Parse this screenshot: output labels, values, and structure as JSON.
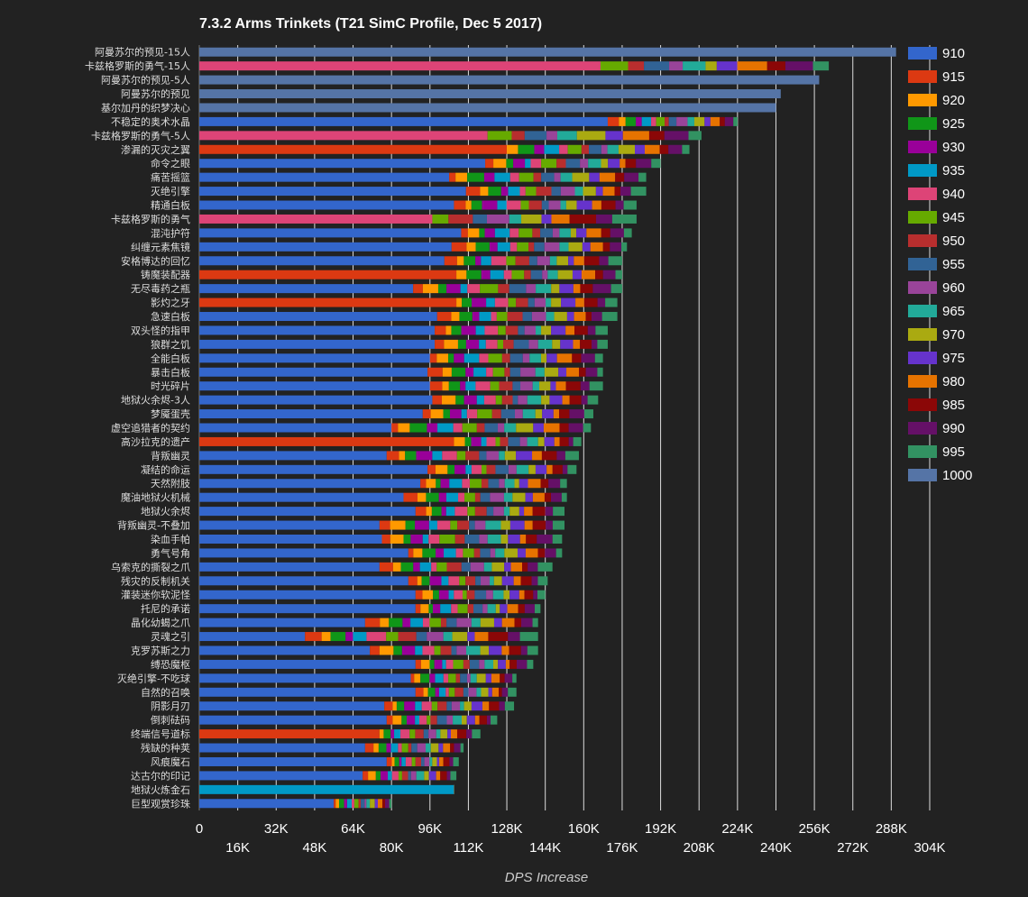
{
  "chart_data": {
    "type": "bar",
    "orientation": "horizontal",
    "stacked": true,
    "title": "7.3.2 Arms Trinkets (T21 SimC Profile, Dec 5 2017)",
    "xlabel": "DPS Increase",
    "xlim": [
      0,
      304000
    ],
    "x_ticks": [
      "0",
      "16K",
      "32K",
      "48K",
      "64K",
      "80K",
      "96K",
      "112K",
      "128K",
      "144K",
      "160K",
      "176K",
      "192K",
      "208K",
      "224K",
      "240K",
      "256K",
      "272K",
      "288K",
      "304K"
    ],
    "grid": true,
    "legend_position": "right",
    "legend": [
      "910",
      "915",
      "920",
      "925",
      "930",
      "935",
      "940",
      "945",
      "950",
      "955",
      "960",
      "965",
      "970",
      "975",
      "980",
      "985",
      "990",
      "995",
      "1000"
    ],
    "colors": [
      "#3366cc",
      "#dc3912",
      "#ff9900",
      "#109618",
      "#990099",
      "#0099c6",
      "#dd4477",
      "#66aa00",
      "#b82e2e",
      "#316395",
      "#994499",
      "#22aa99",
      "#aaaa11",
      "#6633cc",
      "#e67300",
      "#8b0707",
      "#651067",
      "#329262",
      "#5574a6"
    ],
    "categories": [
      "阿曼苏尔的预见-15人",
      "卡兹格罗斯的勇气-15人",
      "阿曼苏尔的预见-5人",
      "阿曼苏尔的预见",
      "基尔加丹的织梦决心",
      "不稳定的奥术水晶",
      "卡兹格罗斯的勇气-5人",
      "渗漏的灭灾之翼",
      "命令之眼",
      "痛苦摇篮",
      "灭绝引擎",
      "精通白板",
      "卡兹格罗斯的勇气",
      "混沌护符",
      "纠缠元素焦镜",
      "安格博达的回忆",
      "铸魔装配器",
      "无尽毒药之瓶",
      "影灼之牙",
      "急速白板",
      "双头怪的指甲",
      "狼群之饥",
      "全能白板",
      "暴击白板",
      "时光碎片",
      "地狱火余烬-3人",
      "梦魇蛋壳",
      "虚空追猎者的契约",
      "高沙拉克的遗产",
      "背叛幽灵",
      "凝结的命运",
      "天然附肢",
      "魔油地狱火机械",
      "地狱火余烬",
      "背叛幽灵-不叠加",
      "染血手帕",
      "勇气号角",
      "乌索克的撕裂之爪",
      "残灾的反制机关",
      "灌装迷你软泥怪",
      "托尼的承诺",
      "晶化幼蝎之爪",
      "灵魂之引",
      "克罗苏斯之力",
      "缚恐魔枢",
      "灭绝引擎-不吃球",
      "自然的召唤",
      "阴影月刃",
      "倒刺砝码",
      "终端信号道标",
      "残缺的种荚",
      "风痕魔石",
      "达古尔的印记",
      "地狱火炼金石",
      "巨型观赏珍珠"
    ],
    "totals": [
      290000,
      262000,
      258000,
      242000,
      240000,
      224000,
      209000,
      204000,
      192000,
      186000,
      186000,
      182000,
      182000,
      180000,
      178000,
      176000,
      176000,
      176000,
      174000,
      174000,
      170000,
      170000,
      168000,
      168000,
      168000,
      166000,
      164000,
      163000,
      159000,
      158000,
      157000,
      153000,
      153000,
      152000,
      152000,
      151000,
      151000,
      147000,
      145000,
      144000,
      142000,
      141000,
      141000,
      141000,
      139000,
      132000,
      132000,
      131000,
      124000,
      117000,
      110000,
      108000,
      107000,
      106000,
      80000
    ],
    "base_values": [
      0,
      167000,
      0,
      0,
      0,
      170000,
      120000,
      128000,
      119000,
      104000,
      111000,
      106000,
      97000,
      109000,
      105000,
      102000,
      107000,
      89000,
      107000,
      99000,
      98000,
      98000,
      96000,
      95000,
      96000,
      97000,
      93000,
      80000,
      106000,
      78000,
      95000,
      92000,
      85000,
      90000,
      75000,
      76000,
      87000,
      75000,
      87000,
      90000,
      90000,
      69000,
      44000,
      71000,
      90000,
      88000,
      90000,
      77000,
      78000,
      75000,
      69000,
      78000,
      68000,
      106000,
      56000
    ],
    "base_series": [
      "1000",
      "940",
      "1000",
      "1000",
      "1000",
      "910",
      "940",
      "915",
      "910",
      "910",
      "910",
      "910",
      "940",
      "910",
      "910",
      "910",
      "915",
      "910",
      "915",
      "910",
      "910",
      "910",
      "910",
      "910",
      "910",
      "910",
      "910",
      "910",
      "915",
      "910",
      "910",
      "910",
      "910",
      "910",
      "910",
      "910",
      "910",
      "910",
      "910",
      "910",
      "910",
      "910",
      "910",
      "910",
      "910",
      "910",
      "910",
      "910",
      "910",
      "915",
      "910",
      "910",
      "910",
      "935",
      "910"
    ]
  }
}
